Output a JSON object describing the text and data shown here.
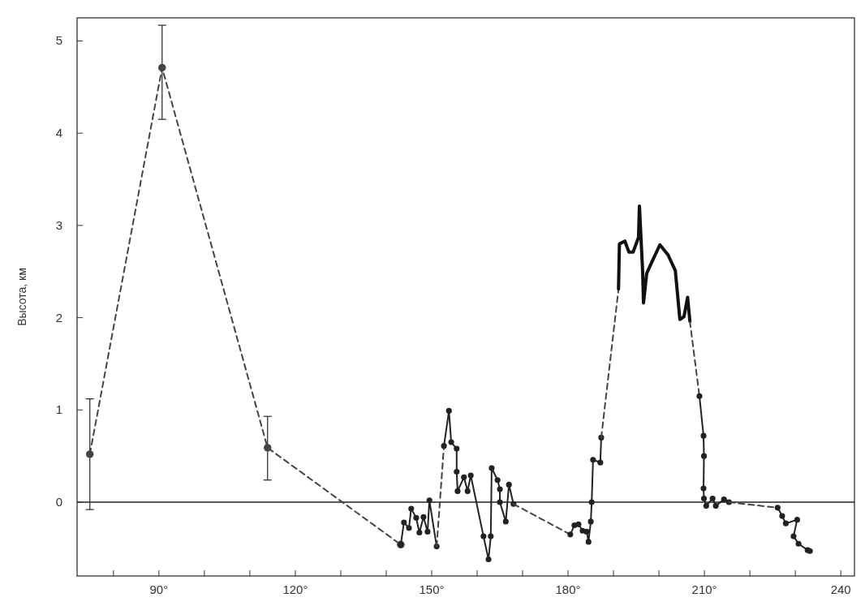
{
  "chart_data": {
    "type": "line",
    "ylabel": "Высота, км",
    "xlim": [
      72,
      243
    ],
    "ylim": [
      -0.8,
      5.25
    ],
    "xticks": [
      {
        "value": 80,
        "label": null
      },
      {
        "value": 90,
        "label": "90°"
      },
      {
        "value": 100,
        "label": null
      },
      {
        "value": 110,
        "label": null
      },
      {
        "value": 120,
        "label": "120°"
      },
      {
        "value": 130,
        "label": null
      },
      {
        "value": 140,
        "label": null
      },
      {
        "value": 150,
        "label": "150°"
      },
      {
        "value": 160,
        "label": null
      },
      {
        "value": 170,
        "label": null
      },
      {
        "value": 180,
        "label": "180°"
      },
      {
        "value": 190,
        "label": null
      },
      {
        "value": 200,
        "label": null
      },
      {
        "value": 210,
        "label": "210°"
      },
      {
        "value": 220,
        "label": null
      },
      {
        "value": 230,
        "label": null
      },
      240
    ],
    "yticks": [
      0,
      1,
      2,
      3,
      4,
      5
    ],
    "grid": false,
    "ref_lines": [
      {
        "axis": "y",
        "value": 0,
        "color": "#222222"
      }
    ],
    "series": [
      {
        "color": "#444444",
        "line_style": "dashed",
        "marker": "circle",
        "x": [
          74.8,
          90.7,
          113.9,
          143.2
        ],
        "values": [
          0.52,
          4.71,
          0.59,
          -0.46
        ],
        "errors": [
          [
            -0.08,
            1.12
          ],
          [
            4.15,
            5.17
          ],
          [
            0.24,
            0.93
          ],
          null
        ]
      },
      {
        "color": "#222222",
        "line_style": "solid",
        "marker": "circle",
        "x": [
          143.2,
          143.9,
          145.0,
          145.5,
          146.6,
          147.3,
          148.2,
          149.1,
          149.5,
          151.1
        ],
        "values": [
          -0.46,
          -0.22,
          -0.28,
          -0.07,
          -0.17,
          -0.33,
          -0.16,
          -0.32,
          0.02,
          -0.48
        ]
      },
      {
        "color": "#444444",
        "line_style": "dashed",
        "marker": "none",
        "x": [
          151.1,
          152.7
        ],
        "values": [
          -0.48,
          0.61
        ]
      },
      {
        "color": "#222222",
        "line_style": "solid",
        "marker": "circle",
        "x": [
          152.7,
          153.8,
          154.3,
          155.5,
          155.5,
          155.7,
          157.1,
          157.9,
          158.6,
          161.4,
          162.5,
          163.0,
          163.2,
          164.5,
          165.0,
          165.0,
          166.3,
          167.0,
          168.0
        ],
        "values": [
          0.61,
          0.99,
          0.65,
          0.58,
          0.33,
          0.12,
          0.27,
          0.12,
          0.29,
          -0.37,
          -0.62,
          -0.37,
          0.37,
          0.24,
          0.14,
          0.0,
          -0.21,
          0.19,
          -0.02
        ]
      },
      {
        "color": "#444444",
        "line_style": "dashed",
        "marker": "none",
        "x": [
          168.0,
          180.5
        ],
        "values": [
          -0.02,
          -0.35
        ]
      },
      {
        "color": "#222222",
        "line_style": "solid",
        "marker": "circle",
        "x": [
          180.5,
          181.4,
          182.3,
          183.2,
          184.1,
          184.5,
          185.0,
          185.2,
          185.5,
          187.1,
          187.3
        ],
        "values": [
          -0.35,
          -0.25,
          -0.24,
          -0.31,
          -0.32,
          -0.43,
          -0.21,
          0.0,
          0.46,
          0.43,
          0.7
        ]
      },
      {
        "color": "#444444",
        "line_style": "dashed",
        "marker": "none",
        "x": [
          187.3,
          191.1
        ],
        "values": [
          0.7,
          2.31
        ]
      },
      {
        "color": "#111111",
        "line_style": "solid",
        "marker": "none",
        "x": [
          191.1,
          191.3,
          192.5,
          193.4,
          194.3,
          195.5,
          195.7,
          196.4,
          196.6,
          197.3,
          198.4,
          200.2,
          202.0,
          203.6,
          204.6,
          205.5,
          206.3,
          206.8
        ],
        "values": [
          2.31,
          2.8,
          2.83,
          2.71,
          2.71,
          2.87,
          3.21,
          2.51,
          2.16,
          2.48,
          2.6,
          2.79,
          2.68,
          2.51,
          1.98,
          2.01,
          2.22,
          1.96
        ]
      },
      {
        "color": "#444444",
        "line_style": "dashed",
        "marker": "none",
        "x": [
          206.8,
          208.9
        ],
        "values": [
          1.96,
          1.15
        ]
      },
      {
        "color": "#222222",
        "line_style": "solid",
        "marker": "circle",
        "x": [
          208.9,
          209.8,
          209.9,
          209.8,
          209.9,
          210.4,
          211.8,
          212.5,
          214.3,
          215.4
        ],
        "values": [
          1.15,
          0.72,
          0.5,
          0.15,
          0.04,
          -0.04,
          0.04,
          -0.04,
          0.03,
          0.0
        ]
      },
      {
        "color": "#444444",
        "line_style": "dashed",
        "marker": "none",
        "x": [
          215.4,
          226.1
        ],
        "values": [
          0.0,
          -0.06
        ]
      },
      {
        "color": "#222222",
        "line_style": "solid",
        "marker": "circle",
        "x": [
          226.1,
          227.1,
          227.9,
          230.4,
          229.6,
          230.7,
          232.7,
          233.2
        ],
        "values": [
          -0.06,
          -0.15,
          -0.23,
          -0.19,
          -0.37,
          -0.45,
          -0.52,
          -0.53
        ]
      }
    ]
  }
}
